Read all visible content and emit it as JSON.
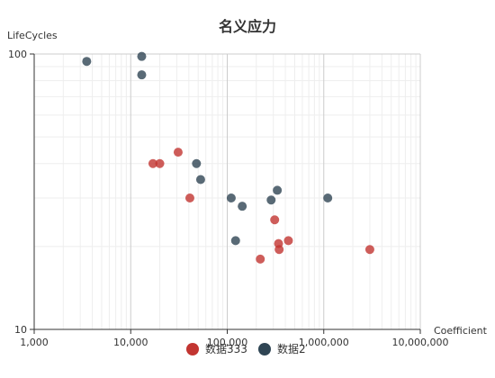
{
  "chart_data": {
    "type": "scatter",
    "title": "名义应力",
    "xlabel": "Coefficient",
    "ylabel": "LifeCycles",
    "x_scale": "log",
    "y_scale": "log",
    "xlim": [
      1000,
      10000000
    ],
    "ylim": [
      10,
      100
    ],
    "x_ticks": [
      1000,
      10000,
      100000,
      1000000,
      10000000
    ],
    "x_tick_labels": [
      "1,000",
      "10,000",
      "100,000",
      "1,000,000",
      "10,000,000"
    ],
    "y_ticks": [
      10,
      100
    ],
    "y_tick_labels": [
      "10",
      "100"
    ],
    "grid": true,
    "legend_position": "bottom",
    "series": [
      {
        "name": "数据333",
        "color": "#c23531",
        "points": [
          {
            "x": 17000,
            "y": 40
          },
          {
            "x": 20000,
            "y": 40
          },
          {
            "x": 31000,
            "y": 44
          },
          {
            "x": 41000,
            "y": 30
          },
          {
            "x": 220000,
            "y": 18
          },
          {
            "x": 310000,
            "y": 25
          },
          {
            "x": 340000,
            "y": 20.5
          },
          {
            "x": 345000,
            "y": 19.5
          },
          {
            "x": 430000,
            "y": 21
          },
          {
            "x": 3000000,
            "y": 19.5
          }
        ]
      },
      {
        "name": "数据2",
        "color": "#2f4554",
        "points": [
          {
            "x": 3500,
            "y": 94
          },
          {
            "x": 13000,
            "y": 98
          },
          {
            "x": 13000,
            "y": 84
          },
          {
            "x": 48000,
            "y": 40
          },
          {
            "x": 53000,
            "y": 35
          },
          {
            "x": 110000,
            "y": 30
          },
          {
            "x": 122000,
            "y": 21
          },
          {
            "x": 143000,
            "y": 28
          },
          {
            "x": 285000,
            "y": 29.5
          },
          {
            "x": 330000,
            "y": 32
          },
          {
            "x": 1100000,
            "y": 30
          }
        ]
      }
    ]
  }
}
